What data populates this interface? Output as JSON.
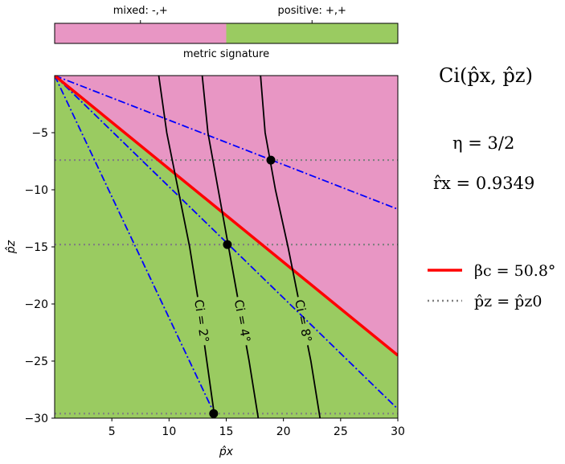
{
  "chart_data": {
    "type": "area",
    "xlabel": "p̂x",
    "ylabel": "p̂z",
    "xlim": [
      0,
      30
    ],
    "ylim": [
      -30,
      0
    ],
    "x_ticks": [
      5,
      10,
      15,
      20,
      25,
      30
    ],
    "y_ticks": [
      -5,
      -10,
      -15,
      -20,
      -25,
      -30
    ],
    "regions": [
      {
        "name": "mixed: -,+",
        "color": "#e896c4",
        "side": "above boundary"
      },
      {
        "name": "positive: +,+",
        "color": "#9acb61",
        "side": "below boundary"
      }
    ],
    "critical_line": {
      "name": "βc = 50.8°",
      "color": "#ff0000",
      "x": [
        0,
        30
      ],
      "y": [
        0,
        -24.5
      ]
    },
    "dashdot_lines": [
      {
        "color": "#0000ff",
        "x": [
          0,
          30
        ],
        "y": [
          0,
          -11.7
        ]
      },
      {
        "color": "#0000ff",
        "x": [
          0,
          30
        ],
        "y": [
          0,
          -29.2
        ]
      },
      {
        "color": "#0000ff",
        "x": [
          0,
          14
        ],
        "y": [
          0,
          -29.7
        ]
      }
    ],
    "dotted_lines": {
      "name": "p̂z = p̂z0",
      "color": "#808080",
      "y": [
        -7.4,
        -14.8,
        -29.6
      ]
    },
    "contours": [
      {
        "label": "Ci = 2°",
        "points": [
          [
            9.1,
            0
          ],
          [
            9.8,
            -5
          ],
          [
            10.8,
            -10
          ],
          [
            11.8,
            -15
          ],
          [
            12.6,
            -20
          ],
          [
            13.3,
            -25
          ],
          [
            14.0,
            -30
          ]
        ]
      },
      {
        "label": "Ci = 4°",
        "points": [
          [
            12.9,
            0
          ],
          [
            13.4,
            -5
          ],
          [
            14.3,
            -10
          ],
          [
            15.2,
            -15
          ],
          [
            16.1,
            -20
          ],
          [
            17.0,
            -25
          ],
          [
            17.8,
            -30
          ]
        ]
      },
      {
        "label": "Ci = 8°",
        "points": [
          [
            18.0,
            0
          ],
          [
            18.4,
            -5
          ],
          [
            19.3,
            -10
          ],
          [
            20.4,
            -15
          ],
          [
            21.4,
            -20
          ],
          [
            22.4,
            -25
          ],
          [
            23.2,
            -30
          ]
        ]
      }
    ],
    "markers": [
      {
        "x": 18.9,
        "y": -7.4
      },
      {
        "x": 15.1,
        "y": -14.8
      },
      {
        "x": 13.9,
        "y": -29.6
      }
    ],
    "colorbar": {
      "label": "metric signature",
      "tick_labels": [
        "mixed: -,+",
        "positive: +,+"
      ]
    },
    "legend": {
      "placement": "right",
      "entries": [
        {
          "label": "βc = 50.8°",
          "color": "#ff0000",
          "style": "solid"
        },
        {
          "label": "p̂z = p̂z0",
          "color": "#808080",
          "style": "dotted"
        }
      ]
    },
    "side_title": "Ci(p̂x, p̂z)",
    "eta": "η = 3/2",
    "r_hat": "r̂x = 0.9349"
  }
}
